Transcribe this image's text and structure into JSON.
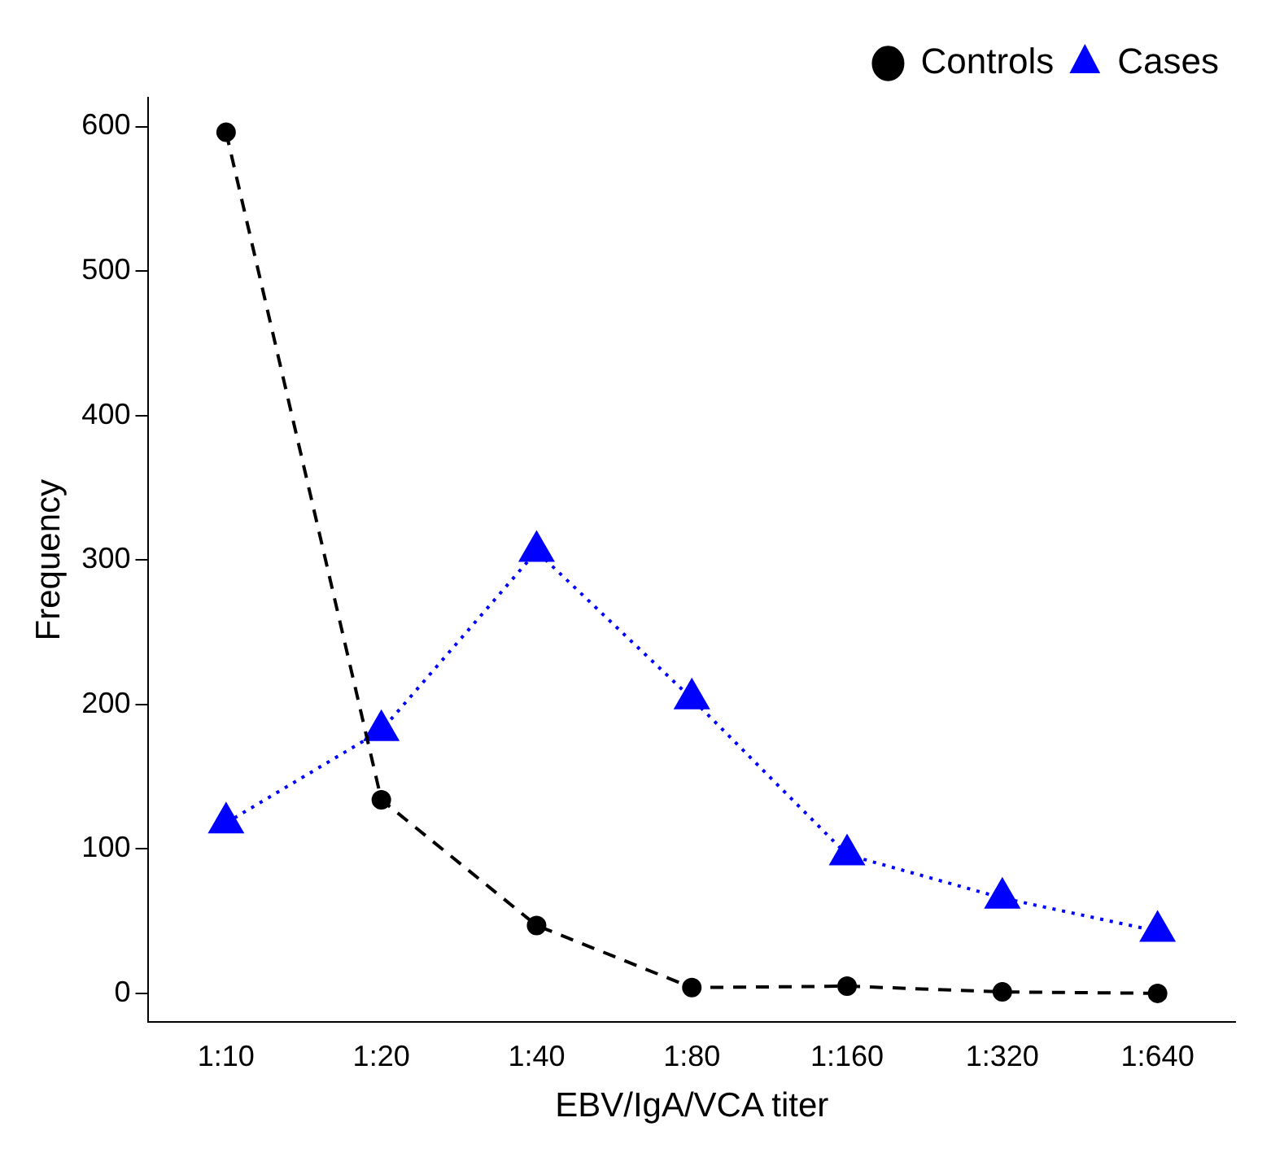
{
  "chart_data": {
    "type": "line",
    "xlabel": "EBV/IgA/VCA titer",
    "ylabel": "Frequency",
    "categories": [
      "1:10",
      "1:20",
      "1:40",
      "1:80",
      "1:160",
      "1:320",
      "1:640"
    ],
    "series": [
      {
        "name": "Controls",
        "color": "#000000",
        "marker": "circle",
        "line_style": "dashed",
        "values": [
          596,
          134,
          47,
          4,
          5,
          1,
          0
        ]
      },
      {
        "name": "Cases",
        "color": "#0000ff",
        "marker": "triangle",
        "line_style": "dotted",
        "values": [
          118,
          182,
          306,
          204,
          96,
          66,
          43
        ]
      }
    ],
    "ylim": [
      -20,
      620
    ],
    "yticks": [
      0,
      100,
      200,
      300,
      400,
      500,
      600
    ],
    "grid": false,
    "legend": "top right"
  }
}
